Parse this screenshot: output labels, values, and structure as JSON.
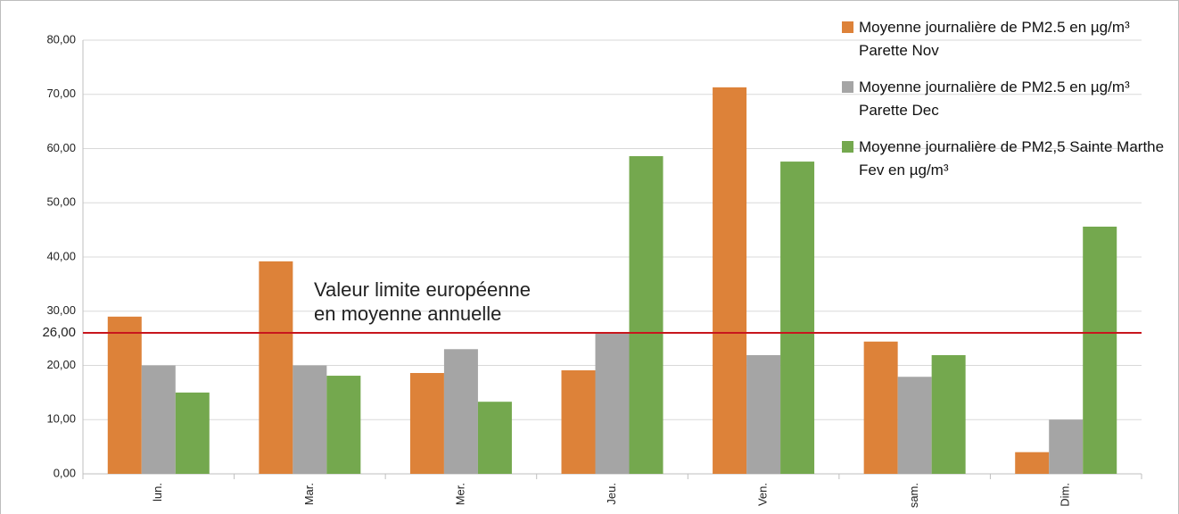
{
  "chart_data": {
    "type": "bar",
    "categories": [
      "lun.",
      "Mar.",
      "Mer.",
      "Jeu.",
      "Ven.",
      "sam.",
      "Dim."
    ],
    "series": [
      {
        "name": "Moyenne journalière de PM2.5  en µg/m³ Parette Nov",
        "color": "#dd8239",
        "values": [
          29,
          39.2,
          18.6,
          19.1,
          71.3,
          24.4,
          4
        ]
      },
      {
        "name": "Moyenne journalière de PM2.5  en µg/m³ Parette Dec",
        "color": "#a5a5a5",
        "values": [
          20,
          20,
          23,
          26,
          21.9,
          17.9,
          10
        ]
      },
      {
        "name": "Moyenne journalière de PM2,5 Sainte Marthe Fev en µg/m³",
        "color": "#74a84e",
        "values": [
          15,
          18.1,
          13.3,
          58.6,
          57.6,
          21.9,
          45.6
        ]
      }
    ],
    "ylim": [
      0,
      80
    ],
    "yticks": [
      {
        "value": 0,
        "label": "0,00"
      },
      {
        "value": 10,
        "label": "10,00"
      },
      {
        "value": 20,
        "label": "20,00"
      },
      {
        "value": 30,
        "label": "30,00"
      },
      {
        "value": 40,
        "label": "40,00"
      },
      {
        "value": 50,
        "label": "50,00"
      },
      {
        "value": 60,
        "label": "60,00"
      },
      {
        "value": 70,
        "label": "70,00"
      },
      {
        "value": 80,
        "label": "80,00"
      }
    ],
    "grid": true,
    "legend": "top-right",
    "reference_line": {
      "value": 26,
      "label": "26,00",
      "color": "#c8161d"
    },
    "annotation": [
      "Valeur limite européenne",
      "en moyenne annuelle"
    ]
  }
}
